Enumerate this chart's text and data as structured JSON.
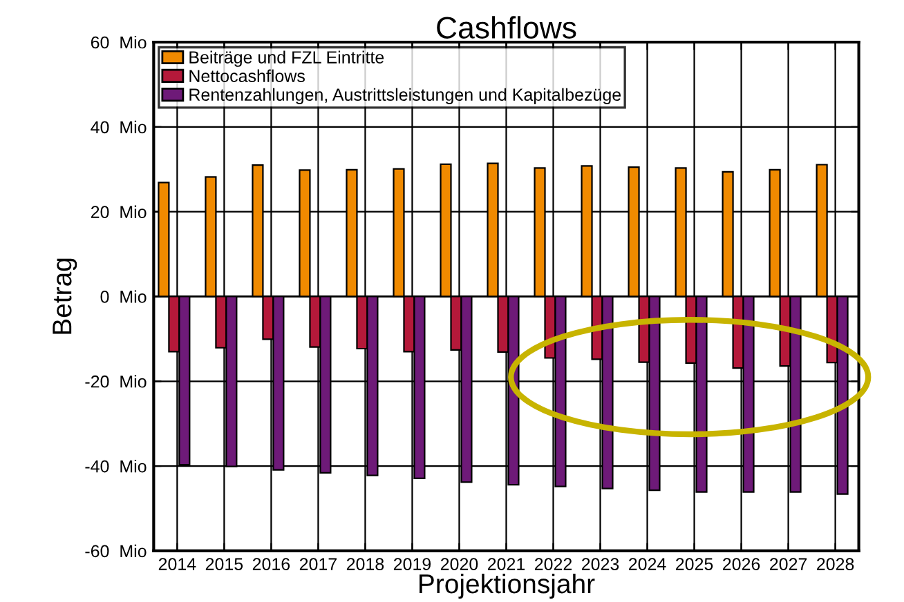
{
  "chart_data": {
    "type": "bar",
    "title": "Cashflows",
    "xlabel": "Projektionsjahr",
    "ylabel": "Betrag",
    "categories": [
      "2014",
      "2015",
      "2016",
      "2017",
      "2018",
      "2019",
      "2020",
      "2021",
      "2022",
      "2023",
      "2024",
      "2025",
      "2026",
      "2027",
      "2028"
    ],
    "series": [
      {
        "name": "Beiträge und FZL Eintritte",
        "color": "#f08a00",
        "values": [
          26.9,
          28.2,
          31.0,
          29.8,
          29.9,
          30.1,
          31.2,
          31.4,
          30.3,
          30.8,
          30.5,
          30.3,
          29.4,
          29.9,
          31.1
        ]
      },
      {
        "name": "Nettocashflows",
        "color": "#b5193a",
        "values": [
          -13.0,
          -12.1,
          -10.1,
          -11.9,
          -12.3,
          -13.0,
          -12.6,
          -13.1,
          -14.5,
          -14.8,
          -15.5,
          -15.7,
          -16.9,
          -16.4,
          -15.6
        ]
      },
      {
        "name": "Rentenzahlungen, Austrittsleistungen und Kapitalbezüge",
        "color": "#6e1a78",
        "values": [
          -39.7,
          -40.1,
          -40.9,
          -41.6,
          -42.2,
          -42.9,
          -43.8,
          -44.4,
          -44.8,
          -45.3,
          -45.7,
          -46.1,
          -46.1,
          -46.1,
          -46.6
        ]
      }
    ],
    "ylim": [
      -60,
      60
    ],
    "yticks": [
      {
        "value": -60,
        "label": "-60  Mio"
      },
      {
        "value": -40,
        "label": "-40  Mio"
      },
      {
        "value": -20,
        "label": "-20  Mio"
      },
      {
        "value": 0,
        "label": "0  Mio"
      },
      {
        "value": 20,
        "label": "20  Mio"
      },
      {
        "value": 40,
        "label": "40  Mio"
      },
      {
        "value": 60,
        "label": "60  Mio"
      }
    ],
    "grid": true,
    "legend": "top left"
  }
}
